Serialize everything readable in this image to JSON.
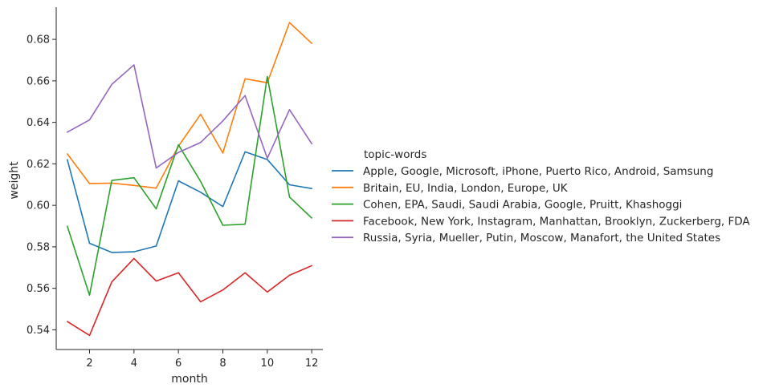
{
  "chart_data": {
    "type": "line",
    "xlabel": "month",
    "ylabel": "weight",
    "xlim": [
      0.5,
      12.5
    ],
    "ylim": [
      0.5305,
      0.6955
    ],
    "x": [
      1,
      2,
      3,
      4,
      5,
      6,
      7,
      8,
      9,
      10,
      11,
      12
    ],
    "xticks": [
      2,
      4,
      6,
      8,
      10,
      12
    ],
    "yticks": [
      0.54,
      0.56,
      0.58,
      0.6,
      0.62,
      0.64,
      0.66,
      0.68
    ],
    "ytick_labels": [
      "0.54",
      "0.56",
      "0.58",
      "0.60",
      "0.62",
      "0.64",
      "0.66",
      "0.68"
    ],
    "grid": false,
    "legend_title": "topic-words",
    "legend_position": "right",
    "series": [
      {
        "name": "Apple, Google, Microsoft, iPhone, Puerto Rico, Android, Samsung",
        "color": "#1f77b4",
        "values": [
          0.622,
          0.5817,
          0.5773,
          0.5776,
          0.5804,
          0.6118,
          0.6063,
          0.5994,
          0.6258,
          0.6221,
          0.6099,
          0.6081
        ]
      },
      {
        "name": "Britain, EU, India, London, Europe, UK",
        "color": "#ff7f0e",
        "values": [
          0.6248,
          0.6105,
          0.6107,
          0.6096,
          0.6083,
          0.6285,
          0.6439,
          0.6252,
          0.661,
          0.6591,
          0.6881,
          0.6781
        ]
      },
      {
        "name": "Cohen, EPA, Saudi, Saudi Arabia, Google, Pruitt, Khashoggi",
        "color": "#2ca02c",
        "values": [
          0.5899,
          0.5567,
          0.612,
          0.6133,
          0.5983,
          0.6292,
          0.6115,
          0.5904,
          0.5909,
          0.6621,
          0.604,
          0.5939
        ]
      },
      {
        "name": "Facebook, New York, Instagram, Manhattan, Brooklyn, Zuckerberg, FDA",
        "color": "#d62728",
        "values": [
          0.544,
          0.5373,
          0.5631,
          0.5744,
          0.5635,
          0.5675,
          0.5535,
          0.5592,
          0.5675,
          0.5582,
          0.5663,
          0.5709
        ]
      },
      {
        "name": "Russia, Syria, Mueller, Putin, Moscow, Manafort, the United States",
        "color": "#9467bd",
        "values": [
          0.6353,
          0.6412,
          0.6583,
          0.6677,
          0.618,
          0.6255,
          0.6303,
          0.6407,
          0.6529,
          0.6227,
          0.6461,
          0.6297
        ]
      }
    ]
  }
}
